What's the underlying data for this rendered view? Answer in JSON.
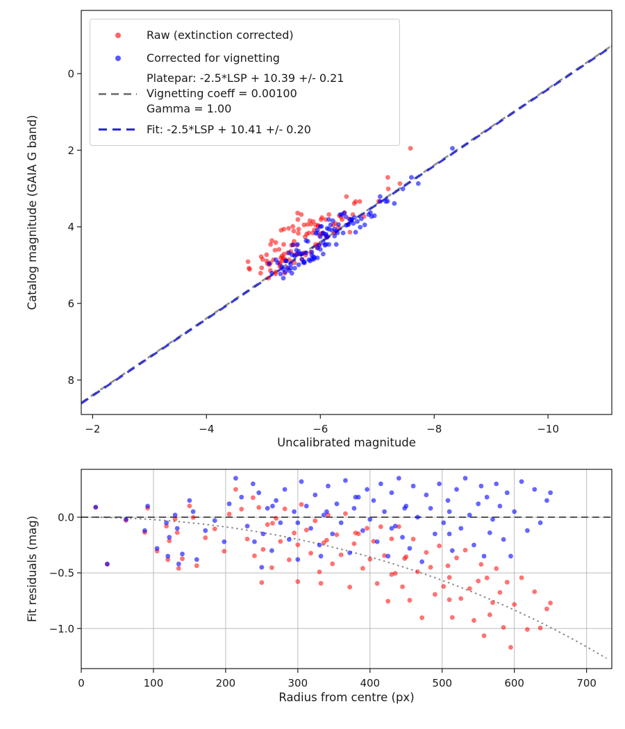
{
  "figure": {
    "background": "#ffffff"
  },
  "colors": {
    "red": "#ff0000",
    "blue": "#0000ff",
    "fit_line": "#2929cc",
    "platepar_line": "#7f7f7f",
    "grid": "#b0b0b0",
    "curve": "#7a7a7a",
    "hline": "#444444",
    "spine": "#1a1a1a",
    "text": "#1a1a1a"
  },
  "model": {
    "fit_slope": 1,
    "fit_intercept": 10.41,
    "fit_err": 0.2,
    "platepar_slope": 1,
    "platepar_intercept": 10.39,
    "platepar_err": 0.21,
    "vignetting_coeff": 0.001,
    "gamma": 1.0
  },
  "chart_data": [
    {
      "type": "scatter",
      "xlabel": "Uncalibrated magnitude",
      "ylabel": "Catalog magnitude (GAIA G band)",
      "xlim": [
        -1.8,
        -11.12
      ],
      "ylim": [
        -1.65,
        8.9
      ],
      "xticks": [
        -2,
        -4,
        -6,
        -8,
        -10
      ],
      "yticks": [
        0,
        2,
        4,
        6,
        8
      ],
      "x_tick_decimals": 0,
      "y_tick_decimals": 0,
      "grid": false,
      "legend_position": "upper left",
      "legend": [
        {
          "marker": "point",
          "color_key": "red",
          "label": "Raw (extinction corrected)"
        },
        {
          "marker": "point",
          "color_key": "blue",
          "label": "Corrected for vignetting"
        },
        {
          "marker": "dashed-line",
          "color_key": "platepar_line",
          "label_lines": [
            "Platepar: -2.5*LSP + 10.39 +/- 0.21",
            "Vignetting coeff = 0.00100",
            "Gamma = 1.00"
          ]
        },
        {
          "marker": "dashed-line",
          "color_key": "fit_line",
          "label": "Fit: -2.5*LSP + 10.41 +/- 0.20"
        }
      ],
      "lines": [
        {
          "name": "platepar-line",
          "slope": 1,
          "intercept": 10.39,
          "color_key": "platepar_line",
          "dash": [
            10,
            6.5
          ],
          "width": 2.8,
          "opacity": 0.85
        },
        {
          "name": "fit-line",
          "slope": 1,
          "intercept": 10.41,
          "color_key": "fit_line",
          "dash": [
            12,
            8
          ],
          "width": 3.2,
          "opacity": 0.9
        }
      ]
    },
    {
      "type": "scatter",
      "xlabel": "Radius from centre (px)",
      "ylabel": "Fit residuals (mag)",
      "xlim": [
        0,
        735
      ],
      "ylim": [
        0.43,
        -1.36
      ],
      "xticks": [
        0,
        100,
        200,
        300,
        400,
        500,
        600,
        700
      ],
      "yticks": [
        0,
        -0.5,
        -1
      ],
      "x_tick_decimals": 0,
      "y_tick_decimals": 1,
      "grid": true,
      "hline": {
        "y": 0,
        "color_key": "hline",
        "dash": [
          10,
          6
        ],
        "width": 2.2,
        "opacity": 0.85
      },
      "curve": {
        "name": "vignetting-model-curve",
        "formula": "10*log10(cos(k*r))",
        "k": 0.001,
        "color_key": "curve",
        "dash": [
          2.5,
          4.5
        ],
        "width": 2,
        "opacity": 0.9
      }
    }
  ],
  "stars_format": "[radius_px, uncalibrated_mag_vignetting_corrected, residual_mag_corrected]",
  "stars": [
    [
      20,
      -5.95,
      0.09
    ],
    [
      36,
      -5.52,
      -0.42
    ],
    [
      62,
      -6.12,
      -0.02
    ],
    [
      105,
      -5.45,
      -0.28
    ],
    [
      118,
      -5.32,
      -0.05
    ],
    [
      122,
      -6.05,
      -0.18
    ],
    [
      130,
      -5.75,
      0.02
    ],
    [
      133,
      -5.58,
      -0.1
    ],
    [
      140,
      -5.22,
      -0.33
    ],
    [
      155,
      -6.3,
      0.05
    ],
    [
      172,
      -5.4,
      -0.12
    ],
    [
      185,
      -5.68,
      -0.03
    ],
    [
      198,
      -6.45,
      -0.22
    ],
    [
      205,
      -5.3,
      0.12
    ],
    [
      214,
      -6.62,
      0.35
    ],
    [
      222,
      -5.85,
      0.18
    ],
    [
      230,
      -6.1,
      -0.08
    ],
    [
      238,
      -5.5,
      0.3
    ],
    [
      246,
      -6.9,
      0.22
    ],
    [
      252,
      -5.62,
      -0.15
    ],
    [
      258,
      -6.25,
      0.08
    ],
    [
      264,
      -5.95,
      -0.3
    ],
    [
      270,
      -5.38,
      0.15
    ],
    [
      276,
      -6.55,
      -0.05
    ],
    [
      282,
      -5.72,
      0.25
    ],
    [
      288,
      -6.05,
      -0.2
    ],
    [
      295,
      -5.48,
      0.05
    ],
    [
      300,
      -6.35,
      -0.38
    ],
    [
      305,
      -5.88,
      0.32
    ],
    [
      312,
      -6.72,
      0.1
    ],
    [
      318,
      -5.55,
      -0.1
    ],
    [
      324,
      -6.15,
      0.2
    ],
    [
      330,
      -5.78,
      -0.25
    ],
    [
      336,
      -6.48,
      0.02
    ],
    [
      342,
      -5.35,
      0.28
    ],
    [
      348,
      -6.0,
      -0.15
    ],
    [
      354,
      -6.85,
      0.12
    ],
    [
      360,
      -5.65,
      -0.05
    ],
    [
      366,
      -6.28,
      0.33
    ],
    [
      372,
      -5.92,
      -0.32
    ],
    [
      378,
      -6.58,
      0.08
    ],
    [
      384,
      -5.45,
      0.18
    ],
    [
      390,
      -6.1,
      -0.12
    ],
    [
      396,
      -5.8,
      0.25
    ],
    [
      400,
      -7.05,
      -0.02
    ],
    [
      405,
      -6.4,
      0.15
    ],
    [
      410,
      -5.58,
      -0.22
    ],
    [
      415,
      -6.7,
      0.3
    ],
    [
      420,
      -5.98,
      0.05
    ],
    [
      425,
      -6.22,
      -0.35
    ],
    [
      430,
      -5.7,
      0.22
    ],
    [
      435,
      -6.52,
      -0.08
    ],
    [
      440,
      -6.05,
      0.35
    ],
    [
      445,
      -5.5,
      -0.18
    ],
    [
      450,
      -6.88,
      0.1
    ],
    [
      455,
      -6.18,
      -0.28
    ],
    [
      460,
      -5.85,
      0.28
    ],
    [
      466,
      -6.45,
      0.0
    ],
    [
      472,
      -6.02,
      -0.4
    ],
    [
      478,
      -5.62,
      0.2
    ],
    [
      484,
      -7.15,
      0.08
    ],
    [
      490,
      -6.32,
      -0.15
    ],
    [
      496,
      -5.9,
      0.3
    ],
    [
      502,
      -6.6,
      -0.05
    ],
    [
      508,
      -6.08,
      0.15
    ],
    [
      514,
      -5.75,
      -0.3
    ],
    [
      520,
      -6.95,
      0.25
    ],
    [
      526,
      -6.25,
      -0.1
    ],
    [
      532,
      -5.95,
      0.35
    ],
    [
      538,
      -6.5,
      0.02
    ],
    [
      544,
      -6.12,
      -0.25
    ],
    [
      550,
      -5.68,
      0.12
    ],
    [
      554,
      -7.3,
      0.28
    ],
    [
      558,
      -6.38,
      -0.35
    ],
    [
      562,
      -6.0,
      0.18
    ],
    [
      566,
      -8.32,
      -0.14
    ],
    [
      570,
      -6.28,
      -0.02
    ],
    [
      575,
      -5.82,
      0.3
    ],
    [
      580,
      -6.65,
      0.1
    ],
    [
      585,
      -6.15,
      -0.2
    ],
    [
      590,
      -5.55,
      0.22
    ],
    [
      595,
      -6.42,
      -0.35
    ],
    [
      600,
      -6.05,
      0.05
    ],
    [
      610,
      -6.78,
      0.32
    ],
    [
      618,
      -6.2,
      -0.12
    ],
    [
      628,
      -5.88,
      0.25
    ],
    [
      636,
      -6.55,
      -0.05
    ],
    [
      645,
      -6.1,
      0.15
    ],
    [
      650,
      -5.72,
      0.22
    ],
    [
      340,
      -7.45,
      0.05
    ],
    [
      430,
      -7.6,
      -0.1
    ],
    [
      380,
      -7.72,
      0.18
    ],
    [
      510,
      -7.05,
      -0.15
    ],
    [
      265,
      -7.18,
      0.1
    ],
    [
      448,
      -5.42,
      0.08
    ],
    [
      332,
      -5.6,
      -0.35
    ],
    [
      160,
      -5.95,
      -0.38
    ],
    [
      92,
      -5.85,
      0.1
    ],
    [
      250,
      -6.15,
      -0.45
    ],
    [
      135,
      -6.0,
      -0.42
    ],
    [
      300,
      -5.15,
      -0.05
    ],
    [
      240,
      -5.25,
      -0.22
    ],
    [
      510,
      -5.35,
      0.05
    ],
    [
      150,
      -5.48,
      0.15
    ],
    [
      88,
      -5.4,
      -0.12
    ],
    [
      120,
      -5.1,
      -0.35
    ]
  ],
  "marker": {
    "radius": 3.4,
    "red_opacity": 0.55,
    "blue_opacity": 0.6
  }
}
